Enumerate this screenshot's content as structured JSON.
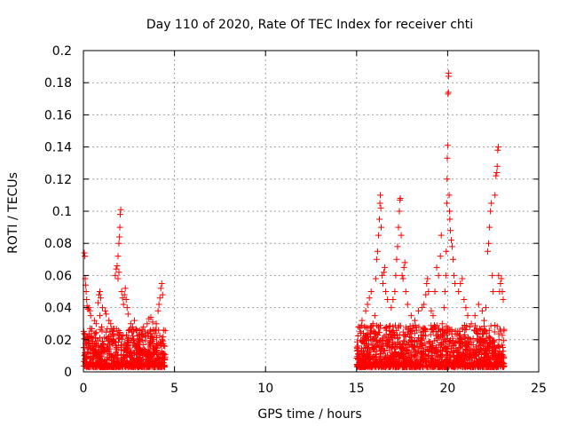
{
  "chart_data": {
    "type": "scatter",
    "title": "Day 110 of 2020, Rate Of TEC Index for receiver chti",
    "xlabel": "GPS time / hours",
    "ylabel": "ROTI / TECUs",
    "xlim": [
      0,
      25
    ],
    "ylim": [
      0,
      0.2
    ],
    "xticks": [
      "0",
      "5",
      "10",
      "15",
      "20",
      "25"
    ],
    "yticks": [
      "0",
      "0.02",
      "0.04",
      "0.06",
      "0.08",
      "0.1",
      "0.12",
      "0.14",
      "0.16",
      "0.18",
      "0.2"
    ],
    "grid": true,
    "marker": "+",
    "marker_color": "#ff0000",
    "clusters": [
      {
        "x_range": [
          0.0,
          4.5
        ],
        "base_max": 0.024
      },
      {
        "x_range": [
          15.0,
          23.1
        ],
        "base_max": 0.026
      }
    ],
    "series": [
      {
        "points": [
          [
            0.05,
            0.074
          ],
          [
            0.08,
            0.072
          ],
          [
            0.1,
            0.058
          ],
          [
            0.12,
            0.054
          ],
          [
            0.15,
            0.05
          ],
          [
            0.18,
            0.045
          ],
          [
            0.2,
            0.041
          ],
          [
            0.25,
            0.039
          ],
          [
            0.3,
            0.04
          ],
          [
            0.35,
            0.038
          ],
          [
            0.4,
            0.035
          ],
          [
            0.6,
            0.032
          ],
          [
            0.7,
            0.03
          ],
          [
            0.9,
            0.035
          ],
          [
            1.0,
            0.028
          ],
          [
            0.8,
            0.043
          ],
          [
            0.85,
            0.048
          ],
          [
            0.9,
            0.05
          ],
          [
            0.95,
            0.046
          ],
          [
            1.05,
            0.04
          ],
          [
            1.2,
            0.038
          ],
          [
            1.25,
            0.036
          ],
          [
            1.4,
            0.032
          ],
          [
            1.5,
            0.03
          ],
          [
            1.75,
            0.06
          ],
          [
            1.8,
            0.064
          ],
          [
            1.85,
            0.066
          ],
          [
            1.9,
            0.058
          ],
          [
            1.95,
            0.062
          ],
          [
            1.9,
            0.072
          ],
          [
            1.95,
            0.08
          ],
          [
            1.97,
            0.084
          ],
          [
            2.0,
            0.09
          ],
          [
            2.02,
            0.098
          ],
          [
            2.05,
            0.101
          ],
          [
            2.1,
            0.05
          ],
          [
            2.15,
            0.046
          ],
          [
            2.2,
            0.042
          ],
          [
            2.25,
            0.048
          ],
          [
            2.3,
            0.052
          ],
          [
            2.35,
            0.045
          ],
          [
            2.4,
            0.04
          ],
          [
            2.45,
            0.036
          ],
          [
            2.6,
            0.03
          ],
          [
            2.7,
            0.028
          ],
          [
            2.8,
            0.032
          ],
          [
            2.9,
            0.026
          ],
          [
            3.3,
            0.028
          ],
          [
            3.5,
            0.03
          ],
          [
            3.6,
            0.033
          ],
          [
            3.7,
            0.034
          ],
          [
            3.8,
            0.031
          ],
          [
            4.0,
            0.03
          ],
          [
            4.1,
            0.038
          ],
          [
            4.15,
            0.042
          ],
          [
            4.2,
            0.046
          ],
          [
            4.25,
            0.052
          ],
          [
            4.3,
            0.055
          ],
          [
            4.35,
            0.048
          ],
          [
            4.4,
            0.026
          ],
          [
            15.1,
            0.028
          ],
          [
            15.2,
            0.025
          ],
          [
            15.3,
            0.032
          ],
          [
            15.5,
            0.038
          ],
          [
            15.6,
            0.042
          ],
          [
            15.7,
            0.046
          ],
          [
            15.8,
            0.05
          ],
          [
            15.9,
            0.03
          ],
          [
            16.0,
            0.035
          ],
          [
            16.05,
            0.058
          ],
          [
            16.1,
            0.07
          ],
          [
            16.15,
            0.075
          ],
          [
            16.2,
            0.085
          ],
          [
            16.25,
            0.095
          ],
          [
            16.28,
            0.105
          ],
          [
            16.3,
            0.11
          ],
          [
            16.33,
            0.102
          ],
          [
            16.35,
            0.09
          ],
          [
            16.4,
            0.06
          ],
          [
            16.45,
            0.055
          ],
          [
            16.5,
            0.062
          ],
          [
            16.55,
            0.065
          ],
          [
            16.6,
            0.05
          ],
          [
            16.7,
            0.045
          ],
          [
            16.9,
            0.04
          ],
          [
            17.0,
            0.045
          ],
          [
            17.1,
            0.05
          ],
          [
            17.15,
            0.06
          ],
          [
            17.2,
            0.07
          ],
          [
            17.25,
            0.078
          ],
          [
            17.3,
            0.09
          ],
          [
            17.35,
            0.1
          ],
          [
            17.38,
            0.107
          ],
          [
            17.4,
            0.108
          ],
          [
            17.45,
            0.085
          ],
          [
            17.5,
            0.06
          ],
          [
            17.55,
            0.058
          ],
          [
            17.6,
            0.065
          ],
          [
            17.65,
            0.068
          ],
          [
            17.7,
            0.05
          ],
          [
            17.8,
            0.042
          ],
          [
            18.0,
            0.035
          ],
          [
            18.2,
            0.032
          ],
          [
            18.4,
            0.038
          ],
          [
            18.6,
            0.04
          ],
          [
            18.7,
            0.042
          ],
          [
            18.8,
            0.048
          ],
          [
            18.85,
            0.055
          ],
          [
            18.9,
            0.058
          ],
          [
            18.95,
            0.05
          ],
          [
            19.1,
            0.038
          ],
          [
            19.2,
            0.035
          ],
          [
            19.3,
            0.05
          ],
          [
            19.4,
            0.065
          ],
          [
            19.5,
            0.06
          ],
          [
            19.6,
            0.072
          ],
          [
            19.65,
            0.085
          ],
          [
            19.7,
            0.03
          ],
          [
            19.8,
            0.04
          ],
          [
            19.85,
            0.05
          ],
          [
            19.9,
            0.06
          ],
          [
            19.92,
            0.075
          ],
          [
            19.95,
            0.105
          ],
          [
            19.97,
            0.12
          ],
          [
            19.98,
            0.133
          ],
          [
            20.0,
            0.141
          ],
          [
            20.02,
            0.173
          ],
          [
            20.04,
            0.174
          ],
          [
            20.05,
            0.184
          ],
          [
            20.06,
            0.186
          ],
          [
            20.08,
            0.11
          ],
          [
            20.1,
            0.1
          ],
          [
            20.12,
            0.095
          ],
          [
            20.15,
            0.088
          ],
          [
            20.2,
            0.082
          ],
          [
            20.25,
            0.078
          ],
          [
            20.3,
            0.07
          ],
          [
            20.35,
            0.06
          ],
          [
            20.4,
            0.055
          ],
          [
            20.6,
            0.05
          ],
          [
            20.7,
            0.055
          ],
          [
            20.8,
            0.058
          ],
          [
            20.9,
            0.045
          ],
          [
            21.0,
            0.04
          ],
          [
            21.1,
            0.035
          ],
          [
            21.3,
            0.03
          ],
          [
            21.5,
            0.035
          ],
          [
            21.7,
            0.042
          ],
          [
            21.9,
            0.038
          ],
          [
            22.0,
            0.032
          ],
          [
            22.1,
            0.04
          ],
          [
            22.2,
            0.075
          ],
          [
            22.25,
            0.08
          ],
          [
            22.3,
            0.09
          ],
          [
            22.35,
            0.1
          ],
          [
            22.4,
            0.105
          ],
          [
            22.45,
            0.06
          ],
          [
            22.5,
            0.05
          ],
          [
            22.6,
            0.11
          ],
          [
            22.65,
            0.122
          ],
          [
            22.7,
            0.124
          ],
          [
            22.72,
            0.128
          ],
          [
            22.75,
            0.138
          ],
          [
            22.78,
            0.14
          ],
          [
            22.8,
            0.06
          ],
          [
            22.85,
            0.05
          ],
          [
            22.9,
            0.055
          ],
          [
            22.95,
            0.058
          ],
          [
            23.0,
            0.05
          ],
          [
            23.05,
            0.045
          ]
        ]
      }
    ]
  }
}
